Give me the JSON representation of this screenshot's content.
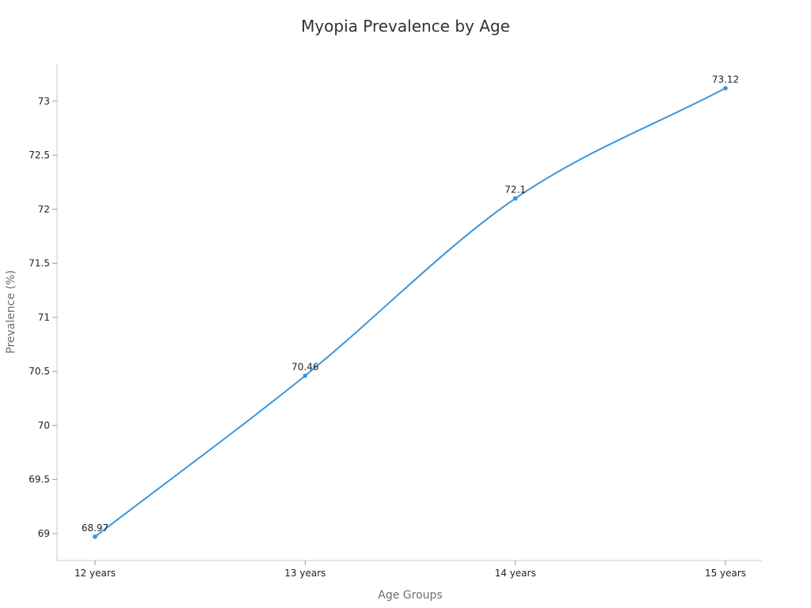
{
  "chart_data": {
    "type": "line",
    "title": "Myopia Prevalence by Age",
    "xlabel": "Age Groups",
    "ylabel": "Prevalence (%)",
    "categories": [
      "12 years",
      "13 years",
      "14 years",
      "15 years"
    ],
    "series": [
      {
        "values": [
          68.97,
          70.46,
          72.1,
          73.12
        ],
        "color": "#3a96dd"
      }
    ],
    "data_labels": [
      "68.97",
      "70.46",
      "72.1",
      "73.12"
    ],
    "ylim": [
      68.75,
      73.35
    ],
    "yticks": [
      69,
      69.5,
      70,
      70.5,
      71,
      71.5,
      72,
      72.5,
      73
    ],
    "ytick_labels": [
      "69",
      "69.5",
      "70",
      "70.5",
      "71",
      "71.5",
      "72",
      "72.5",
      "73"
    ],
    "grid": false,
    "legend": "none",
    "smooth": true
  }
}
